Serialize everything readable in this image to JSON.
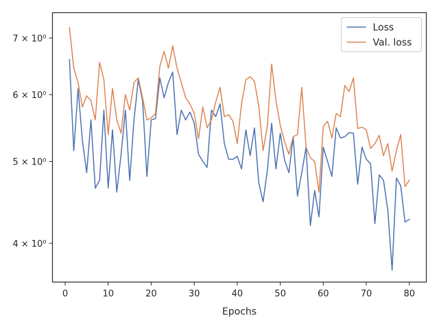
{
  "chart_data": {
    "type": "line",
    "xlabel": "Epochs",
    "ylabel": "",
    "yscale": "log",
    "xlim": [
      -2.95,
      83.95
    ],
    "ylim": [
      3.6,
      7.5
    ],
    "x_ticks": [
      0,
      10,
      20,
      30,
      40,
      50,
      60,
      70,
      80
    ],
    "y_ticks": [
      {
        "value": 4,
        "label": "4 × 10⁰"
      },
      {
        "value": 5,
        "label": "5 × 10⁰"
      },
      {
        "value": 6,
        "label": "6 × 10⁰"
      },
      {
        "value": 7,
        "label": "7 × 10⁰"
      }
    ],
    "legend_position": "top-right",
    "grid": false,
    "x": [
      1,
      2,
      3,
      4,
      5,
      6,
      7,
      8,
      9,
      10,
      11,
      12,
      13,
      14,
      15,
      16,
      17,
      18,
      19,
      20,
      21,
      22,
      23,
      24,
      25,
      26,
      27,
      28,
      29,
      30,
      31,
      32,
      33,
      34,
      35,
      36,
      37,
      38,
      39,
      40,
      41,
      42,
      43,
      44,
      45,
      46,
      47,
      48,
      49,
      50,
      51,
      52,
      53,
      54,
      55,
      56,
      57,
      58,
      59,
      60,
      61,
      62,
      63,
      64,
      65,
      66,
      67,
      68,
      69,
      70,
      71,
      72,
      73,
      74,
      75,
      76,
      77,
      78,
      79,
      80
    ],
    "series": [
      {
        "name": "Loss",
        "color": "#4c72b0",
        "values": [
          6.6,
          5.15,
          6.1,
          5.3,
          4.85,
          5.6,
          4.65,
          4.75,
          5.75,
          4.65,
          5.45,
          4.6,
          5.1,
          5.75,
          4.75,
          5.6,
          6.25,
          5.9,
          4.8,
          5.6,
          5.62,
          6.28,
          5.95,
          6.2,
          6.38,
          5.38,
          5.75,
          5.6,
          5.72,
          5.55,
          5.1,
          5.0,
          4.92,
          5.75,
          5.65,
          5.85,
          5.25,
          5.03,
          5.03,
          5.07,
          4.9,
          5.45,
          5.08,
          5.48,
          4.72,
          4.48,
          4.88,
          5.55,
          4.9,
          5.4,
          5.02,
          4.85,
          5.35,
          4.55,
          4.85,
          5.2,
          4.2,
          4.62,
          4.3,
          5.2,
          5.0,
          4.8,
          5.48,
          5.33,
          5.35,
          5.41,
          5.4,
          4.7,
          5.2,
          5.03,
          4.97,
          4.22,
          4.82,
          4.75,
          4.38,
          3.72,
          4.78,
          4.68,
          4.24,
          4.27
        ]
      },
      {
        "name": "Val. loss",
        "color": "#dd8452",
        "values": [
          7.2,
          6.45,
          6.2,
          5.8,
          5.98,
          5.9,
          5.6,
          6.55,
          6.25,
          5.38,
          6.1,
          5.6,
          5.4,
          6.0,
          5.75,
          6.2,
          6.28,
          5.95,
          5.6,
          5.63,
          5.7,
          6.48,
          6.75,
          6.45,
          6.85,
          6.45,
          6.2,
          5.95,
          5.85,
          5.7,
          5.32,
          5.8,
          5.48,
          5.6,
          5.88,
          6.12,
          5.65,
          5.68,
          5.58,
          5.25,
          5.85,
          6.25,
          6.3,
          6.22,
          5.82,
          5.15,
          5.5,
          6.52,
          5.9,
          5.52,
          5.28,
          5.1,
          5.35,
          5.38,
          6.12,
          5.2,
          5.05,
          5.0,
          4.6,
          5.5,
          5.58,
          5.33,
          5.7,
          5.65,
          6.15,
          6.05,
          6.28,
          5.47,
          5.49,
          5.45,
          5.18,
          5.25,
          5.37,
          5.08,
          5.25,
          4.87,
          5.15,
          5.38,
          4.67,
          4.75
        ]
      }
    ]
  }
}
